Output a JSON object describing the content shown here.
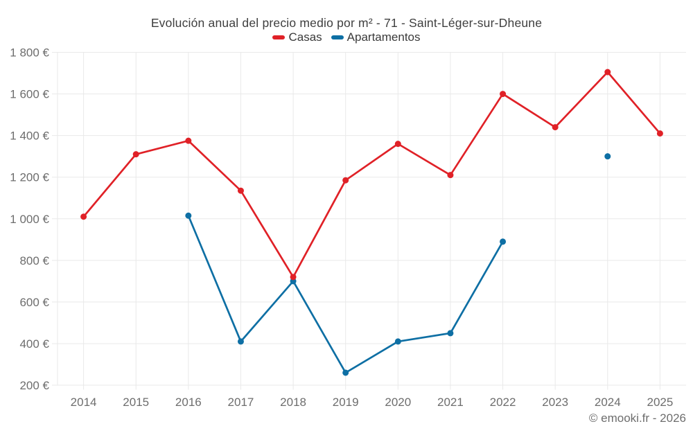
{
  "header": {
    "title": "Evolución anual del precio medio por m² - 71 - Saint-Léger-sur-Dheune"
  },
  "footer": {
    "credit": "© emooki.fr - 2026"
  },
  "chart_data": {
    "type": "line",
    "title": "Evolución anual del precio medio por m² - 71 - Saint-Léger-sur-Dheune",
    "categories": [
      "2014",
      "2015",
      "2016",
      "2017",
      "2018",
      "2019",
      "2020",
      "2021",
      "2022",
      "2023",
      "2024",
      "2025"
    ],
    "series": [
      {
        "name": "Casas",
        "color": "#e02127",
        "values": [
          1010,
          1310,
          1375,
          1135,
          720,
          1185,
          1360,
          1210,
          1600,
          1440,
          1705,
          1410
        ]
      },
      {
        "name": "Apartamentos",
        "color": "#0e6fa4",
        "values": [
          null,
          null,
          1015,
          410,
          700,
          260,
          410,
          450,
          890,
          null,
          1300,
          null
        ]
      }
    ],
    "xlabel": "",
    "ylabel": "",
    "y_axis": {
      "min": 200,
      "max": 1800,
      "step": 200,
      "unit": "€"
    },
    "grid": true,
    "legend_position": "top",
    "marker": "circle"
  }
}
